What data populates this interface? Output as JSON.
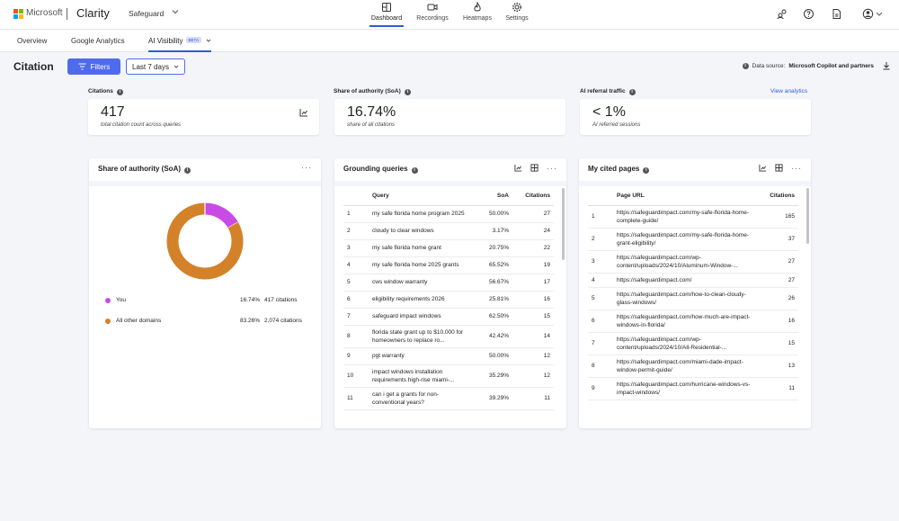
{
  "brand": {
    "company": "Microsoft",
    "product": "Clarity",
    "project": "Safeguard"
  },
  "nav": [
    {
      "label": "Dashboard",
      "icon": "dashboard-icon",
      "active": true
    },
    {
      "label": "Recordings",
      "icon": "video-icon"
    },
    {
      "label": "Heatmaps",
      "icon": "flame-icon"
    },
    {
      "label": "Settings",
      "icon": "gear-icon"
    }
  ],
  "subnav": {
    "overview": "Overview",
    "google": "Google Analytics",
    "ai": "AI Visibility",
    "beta": "BETA"
  },
  "header": {
    "title": "Citation",
    "filters": "Filters",
    "date_range": "Last 7 days",
    "source_prefix": "Data source:",
    "source_name": "Microsoft Copilot and partners"
  },
  "kpis": {
    "citations": {
      "label": "Citations",
      "value": "417",
      "sub": "total citation count across queries"
    },
    "soa": {
      "label": "Share of authority (SoA)",
      "value": "16.74%",
      "sub": "share of all citations"
    },
    "referral": {
      "label": "AI referral traffic",
      "value": "< 1%",
      "sub": "AI referred sessions",
      "link": "View analytics"
    }
  },
  "soa_panel": {
    "title": "Share of authority (SoA)",
    "legend": [
      {
        "name": "You",
        "pct": "16.74%",
        "citations": "417 citations",
        "color": "#c84be6"
      },
      {
        "name": "All other domains",
        "pct": "83.26%",
        "citations": "2,074 citations",
        "color": "#d3822a"
      }
    ],
    "chart_data": {
      "type": "pie",
      "categories": [
        "You",
        "All other domains"
      ],
      "values": [
        16.74,
        83.26
      ]
    }
  },
  "queries_panel": {
    "title": "Grounding queries",
    "columns": {
      "query": "Query",
      "soa": "SoA",
      "citations": "Citations"
    },
    "rows": [
      {
        "n": "1",
        "q": "my safe florida home program 2025",
        "soa": "50.00%",
        "c": "27"
      },
      {
        "n": "2",
        "q": "cloudy to clear windows",
        "soa": "3.17%",
        "c": "24"
      },
      {
        "n": "3",
        "q": "my safe florida home grant",
        "soa": "20.75%",
        "c": "22"
      },
      {
        "n": "4",
        "q": "my safe florida home 2025 grants",
        "soa": "65.52%",
        "c": "19"
      },
      {
        "n": "5",
        "q": "cws window warranty",
        "soa": "56.67%",
        "c": "17"
      },
      {
        "n": "6",
        "q": "eligibility requirements 2026",
        "soa": "25.81%",
        "c": "16"
      },
      {
        "n": "7",
        "q": "safeguard impact windows",
        "soa": "62.50%",
        "c": "15"
      },
      {
        "n": "8",
        "q": "florida state grant up to $10,000 for homeowners to replace ro...",
        "soa": "42.42%",
        "c": "14"
      },
      {
        "n": "9",
        "q": "pgt warranty",
        "soa": "50.00%",
        "c": "12"
      },
      {
        "n": "10",
        "q": "impact windows installation requirements high-rise miami-...",
        "soa": "35.29%",
        "c": "12"
      },
      {
        "n": "11",
        "q": "can i get a grants for non-conventional years?",
        "soa": "39.29%",
        "c": "11"
      }
    ]
  },
  "pages_panel": {
    "title": "My cited pages",
    "columns": {
      "url": "Page URL",
      "citations": "Citations"
    },
    "rows": [
      {
        "n": "1",
        "url": "https://safeguardimpact.com/my-safe-florida-home-complete-guide/",
        "c": "165"
      },
      {
        "n": "2",
        "url": "https://safeguardimpact.com/my-safe-florida-home-grant-eligibility/",
        "c": "37"
      },
      {
        "n": "3",
        "url": "https://safeguardimpact.com/wp-content/uploads/2024/10/Aluminum-Window-...",
        "c": "27"
      },
      {
        "n": "4",
        "url": "https://safeguardimpact.com/",
        "c": "27"
      },
      {
        "n": "5",
        "url": "https://safeguardimpact.com/how-to-clean-cloudy-glass-windows/",
        "c": "26"
      },
      {
        "n": "6",
        "url": "https://safeguardimpact.com/how-much-are-impact-windows-in-florida/",
        "c": "16"
      },
      {
        "n": "7",
        "url": "https://safeguardimpact.com/wp-content/uploads/2024/10/All-Residential-...",
        "c": "15"
      },
      {
        "n": "8",
        "url": "https://safeguardimpact.com/miami-dade-impact-window-permit-guide/",
        "c": "13"
      },
      {
        "n": "9",
        "url": "https://safeguardimpact.com/hurricane-windows-vs-impact-windows/",
        "c": "11"
      }
    ]
  }
}
